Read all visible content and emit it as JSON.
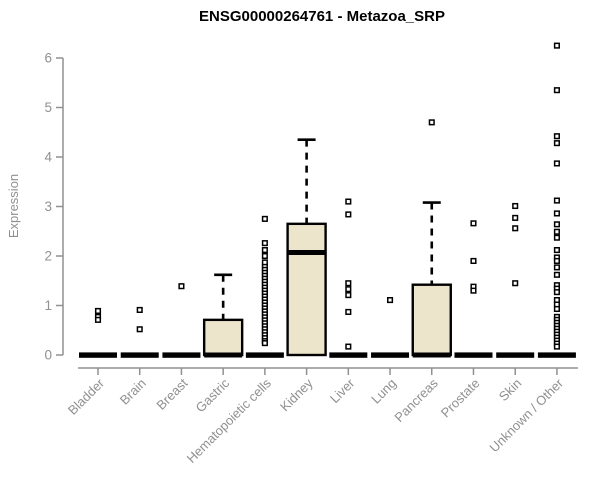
{
  "title": "ENSG00000264761 - Metazoa_SRP",
  "ylabel": "Expression",
  "colors": {
    "box_fill": "#EDE5CB",
    "box_stroke": "#000000",
    "axis_gray": "#909090",
    "title_color": "#000000",
    "background": "#ffffff"
  },
  "chart_data": {
    "type": "boxplot",
    "title": "ENSG00000264761 - Metazoa_SRP",
    "xlabel": "",
    "ylabel": "Expression",
    "ylim": [
      0,
      6.4
    ],
    "yticks": [
      0,
      1,
      2,
      3,
      4,
      5,
      6
    ],
    "grid": false,
    "legend": "none",
    "categories": [
      "Bladder",
      "Brain",
      "Breast",
      "Gastric",
      "Hematopoietic cells",
      "Kidney",
      "Liver",
      "Lung",
      "Pancreas",
      "Prostate",
      "Skin",
      "Unknown / Other"
    ],
    "series": [
      {
        "name": "Bladder",
        "median": 0,
        "q1": 0,
        "q3": 0,
        "whisker_low": 0,
        "whisker_high": 0,
        "outliers": [
          0.89,
          0.77,
          0.71
        ]
      },
      {
        "name": "Brain",
        "median": 0,
        "q1": 0,
        "q3": 0,
        "whisker_low": 0,
        "whisker_high": 0,
        "outliers": [
          0.91,
          0.52
        ]
      },
      {
        "name": "Breast",
        "median": 0,
        "q1": 0,
        "q3": 0,
        "whisker_low": 0,
        "whisker_high": 0,
        "outliers": [
          1.39
        ]
      },
      {
        "name": "Gastric",
        "median": 0,
        "q1": 0,
        "q3": 0.71,
        "whisker_low": 0,
        "whisker_high": 1.62,
        "outliers": []
      },
      {
        "name": "Hematopoietic cells",
        "median": 0,
        "q1": 0,
        "q3": 0,
        "whisker_low": 0,
        "whisker_high": 0,
        "outliers": [
          2.75,
          2.26,
          2.12,
          2.0,
          1.87,
          1.78,
          1.72,
          1.66,
          1.6,
          1.54,
          1.48,
          1.42,
          1.36,
          1.3,
          1.24,
          1.18,
          1.12,
          1.06,
          1.0,
          0.94,
          0.88,
          0.82,
          0.76,
          0.7,
          0.64,
          0.58,
          0.52,
          0.46,
          0.4,
          0.34,
          0.28,
          0.24
        ]
      },
      {
        "name": "Kidney",
        "median": 2.07,
        "q1": 0,
        "q3": 2.65,
        "whisker_low": 0,
        "whisker_high": 4.35,
        "outliers": []
      },
      {
        "name": "Liver",
        "median": 0,
        "q1": 0,
        "q3": 0,
        "whisker_low": 0,
        "whisker_high": 0,
        "outliers": [
          3.1,
          2.84,
          1.45,
          1.33,
          1.21,
          0.87,
          0.17
        ]
      },
      {
        "name": "Lung",
        "median": 0,
        "q1": 0,
        "q3": 0,
        "whisker_low": 0,
        "whisker_high": 0,
        "outliers": [
          1.11
        ]
      },
      {
        "name": "Pancreas",
        "median": 0,
        "q1": 0,
        "q3": 1.42,
        "whisker_low": 0,
        "whisker_high": 3.08,
        "outliers": [
          4.7
        ]
      },
      {
        "name": "Prostate",
        "median": 0,
        "q1": 0,
        "q3": 0,
        "whisker_low": 0,
        "whisker_high": 0,
        "outliers": [
          2.66,
          1.9,
          1.38,
          1.3
        ]
      },
      {
        "name": "Skin",
        "median": 0,
        "q1": 0,
        "q3": 0,
        "whisker_low": 0,
        "whisker_high": 0,
        "outliers": [
          3.01,
          2.77,
          2.56,
          1.45
        ]
      },
      {
        "name": "Unknown / Other",
        "median": 0,
        "q1": 0,
        "q3": 0,
        "whisker_low": 0,
        "whisker_high": 0,
        "outliers": [
          6.25,
          5.35,
          4.42,
          4.28,
          3.87,
          3.12,
          2.86,
          2.64,
          2.49,
          2.37,
          2.12,
          1.97,
          1.9,
          1.77,
          1.62,
          1.41,
          1.34,
          1.27,
          1.11,
          1.02,
          0.93,
          0.77,
          0.71,
          0.65,
          0.59,
          0.53,
          0.47,
          0.41,
          0.35,
          0.29,
          0.23,
          0.17
        ]
      }
    ]
  }
}
